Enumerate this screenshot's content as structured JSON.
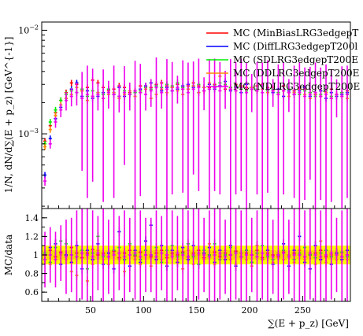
{
  "chart_data": {
    "type": "scatter",
    "subtype": "binned-histogram-with-ratio",
    "top_panel": {
      "ylabel": "1/N, dN/d∑(E + p_z) [GeV^{-1}]",
      "yscale": "log",
      "ylim": [
        0.00019,
        0.012
      ],
      "yticks": [
        {
          "label": "10^{-2}",
          "value": 0.01
        },
        {
          "label": "10^{-3}",
          "value": 0.001
        }
      ]
    },
    "ratio_panel": {
      "ylabel": "MC/data",
      "ylim": [
        0.5,
        1.5
      ],
      "yticks": [
        {
          "label": "0.6",
          "value": 0.6
        },
        {
          "label": "0.8",
          "value": 0.8
        },
        {
          "label": "1",
          "value": 1.0
        },
        {
          "label": "1.2",
          "value": 1.2
        },
        {
          "label": "1.4",
          "value": 1.4
        }
      ],
      "band_inner": [
        0.95,
        1.05
      ],
      "band_outer": [
        0.9,
        1.1
      ]
    },
    "xlabel": "∑(E + p_z) [GeV]",
    "xlim": [
      4,
      295
    ],
    "xticks": [
      {
        "label": "50",
        "value": 50
      },
      {
        "label": "100",
        "value": 100
      },
      {
        "label": "150",
        "value": 150
      },
      {
        "label": "200",
        "value": 200
      },
      {
        "label": "250",
        "value": 250
      }
    ],
    "legend": {
      "position": "top-right",
      "entries": [
        {
          "label": "MC (MinBiasLRG3edgepT",
          "color": "#ff0000"
        },
        {
          "label": "MC (DiffLRG3edgepT200l",
          "color": "#0000ff"
        },
        {
          "label": "MC (SDLRG3edgepT200E",
          "color": "#00ee00"
        },
        {
          "label": "MC (DDLRG3edgepT200E",
          "color": "#ff8800"
        },
        {
          "label": "MC (NDLRG3edgepT200E",
          "color": "#ee00ee"
        }
      ]
    },
    "bin_width": 5,
    "series": [
      {
        "name": "MC (MinBiasLRG3edgepT",
        "color": "#ff0000",
        "x": [
          7,
          12,
          17,
          22,
          27,
          32,
          37,
          42,
          47,
          52,
          57,
          62,
          67,
          72,
          77,
          82,
          87,
          92,
          97,
          102,
          107,
          112,
          117,
          122,
          127,
          132,
          137,
          142,
          147,
          152,
          157,
          162,
          167,
          172,
          177,
          182,
          187,
          192,
          197,
          202,
          207,
          212,
          217,
          222,
          227,
          232,
          237,
          242,
          247,
          252,
          257,
          262,
          267,
          272,
          277,
          282,
          287,
          292
        ],
        "y": [
          0.00085,
          0.0012,
          0.0016,
          0.0021,
          0.0025,
          0.0031,
          0.003,
          0.0026,
          0.0028,
          0.0033,
          0.0031,
          0.0028,
          0.0026,
          0.0027,
          0.0029,
          0.0028,
          0.0025,
          0.0026,
          0.0029,
          0.0027,
          0.0028,
          0.003,
          0.0031,
          0.0029,
          0.0028,
          0.003,
          0.0027,
          0.0029,
          0.0031,
          0.0029,
          0.0026,
          0.0028,
          0.003,
          0.0029,
          0.0027,
          0.0028,
          0.003,
          0.0029,
          0.0028,
          0.0027,
          0.0029,
          0.003,
          0.0028,
          0.0026,
          0.0027,
          0.0029,
          0.0025,
          0.0026,
          0.0028,
          0.0027,
          0.0025,
          0.0024,
          0.0026,
          0.0025,
          0.0027,
          0.0024,
          0.0025,
          0.0026
        ],
        "ratio": [
          1.0,
          1.05,
          0.98,
          1.03,
          1.0,
          1.08,
          1.02,
          0.97,
          1.02,
          1.06,
          1.0,
          1.02,
          0.98,
          1.04,
          0.97,
          1.02,
          1.05,
          0.99,
          1.03,
          1.0,
          0.98,
          1.02,
          1.05,
          0.97,
          1.02,
          1.0,
          1.03,
          0.98,
          1.02,
          1.05,
          0.97,
          1.0,
          1.03,
          0.98,
          1.02,
          1.0,
          1.04,
          0.98,
          1.02,
          1.0,
          1.05,
          0.97,
          1.02,
          1.0,
          0.98,
          1.03,
          1.0,
          1.02,
          1.05,
          0.98,
          1.0,
          1.02,
          1.05,
          0.98,
          1.0,
          1.02,
          0.98,
          1.0
        ]
      },
      {
        "name": "MC (DiffLRG3edgepT200l",
        "color": "#0000ff",
        "x": [
          7,
          12,
          17,
          22,
          27,
          32,
          37,
          42,
          47,
          52,
          57,
          62,
          67,
          72,
          77,
          82,
          87,
          92,
          97,
          102,
          107,
          112,
          117,
          122,
          127,
          132,
          137,
          142,
          147,
          152,
          157,
          162,
          167,
          172,
          177,
          182,
          187,
          192,
          197,
          202,
          207,
          212,
          217,
          222,
          227,
          232,
          237,
          242,
          247,
          252,
          257,
          262,
          267,
          272,
          277,
          282,
          287,
          292
        ],
        "y": [
          0.0004,
          0.0009,
          0.0014,
          0.0018,
          0.0022,
          0.0027,
          0.0031,
          0.0023,
          0.0026,
          0.0022,
          0.0023,
          0.0025,
          0.0027,
          0.0024,
          0.0028,
          0.0023,
          0.0024,
          0.0025,
          0.0027,
          0.0029,
          0.0031,
          0.0029,
          0.0026,
          0.0028,
          0.0026,
          0.0027,
          0.0029,
          0.003,
          0.0028,
          0.0025,
          0.0028,
          0.003,
          0.0027,
          0.0029,
          0.0032,
          0.0026,
          0.0028,
          0.0025,
          0.003,
          0.0028,
          0.0026,
          0.0029,
          0.0027,
          0.0025,
          0.0027,
          0.0023,
          0.0026,
          0.0024,
          0.0026,
          0.0028,
          0.0023,
          0.0024,
          0.0026,
          0.0022,
          0.0025,
          0.0023,
          0.0024,
          0.0025
        ],
        "ratio": [
          0.95,
          1.08,
          1.12,
          0.9,
          1.0,
          0.92,
          1.1,
          0.85,
          1.05,
          0.95,
          1.12,
          0.9,
          1.02,
          0.85,
          1.25,
          0.95,
          0.88,
          1.05,
          0.92,
          1.15,
          1.32,
          0.95,
          1.1,
          0.88,
          1.05,
          0.92,
          1.08,
          0.95,
          1.1,
          0.9,
          1.02,
          1.08,
          0.92,
          1.05,
          0.95,
          1.1,
          0.88,
          1.02,
          1.05,
          0.92,
          1.1,
          0.95,
          1.05,
          0.9,
          1.0,
          1.12,
          0.88,
          1.05,
          1.2,
          0.92,
          0.85,
          1.1,
          0.95,
          1.05,
          0.9,
          1.02,
          0.95,
          1.05
        ]
      },
      {
        "name": "MC (SDLRG3edgepT200E",
        "color": "#00ee00",
        "x": [
          7,
          12,
          17,
          22,
          27,
          32,
          37,
          42,
          47,
          52,
          57,
          62,
          67,
          72,
          77,
          82,
          87,
          92,
          97,
          102,
          107,
          112,
          117,
          122,
          127,
          132,
          137,
          142,
          147,
          152,
          157,
          162,
          167,
          172,
          177,
          182,
          187,
          192,
          197,
          202,
          207,
          212,
          217,
          222,
          227,
          232,
          237,
          242,
          247,
          252,
          257,
          262,
          267,
          272,
          277,
          282,
          287,
          292
        ],
        "y": [
          0.0008,
          0.0013,
          0.0017,
          0.0021,
          0.0024,
          0.0026,
          0.0025,
          0.0027,
          0.0023,
          0.0026,
          0.0025,
          0.0024,
          0.0027,
          0.0025,
          0.0023,
          0.0026,
          0.0024,
          0.0025,
          0.0026,
          0.0028,
          0.0027,
          0.0029,
          0.0028,
          0.003,
          0.0029,
          0.0031,
          0.0028,
          0.0027,
          0.0029,
          0.003,
          0.0028,
          0.0027,
          0.0029,
          0.0031,
          0.003,
          0.0028,
          0.0029,
          0.0027,
          0.0026,
          0.0028,
          0.0027,
          0.0029,
          0.0026,
          0.0027,
          0.0025,
          0.0026,
          0.0027,
          0.0025,
          0.0024,
          0.0026,
          0.0025,
          0.0023,
          0.0024,
          0.0026,
          0.0023,
          0.0024,
          0.0025,
          0.0024
        ],
        "ratio": [
          1.02,
          0.92,
          1.08,
          1.15,
          1.12,
          1.0,
          0.98,
          1.05,
          0.85,
          1.02,
          1.2,
          0.98,
          0.9,
          1.05,
          1.08,
          0.95,
          1.12,
          1.0,
          0.95,
          1.05,
          1.0,
          1.08,
          0.92,
          1.05,
          1.1,
          0.98,
          1.02,
          1.12,
          0.98,
          0.9,
          1.05,
          1.0,
          1.12,
          0.95,
          1.0,
          1.08,
          1.02,
          0.98,
          1.05,
          0.92,
          1.02,
          1.1,
          0.98,
          0.95,
          1.02,
          1.05,
          1.0,
          0.95,
          1.02,
          1.08,
          1.0,
          0.97,
          1.02,
          1.05,
          0.98,
          1.0,
          1.03,
          0.98
        ]
      },
      {
        "name": "MC (DDLRG3edgepT200E",
        "color": "#ff8800",
        "x": [
          7,
          12,
          17,
          22,
          27,
          32,
          37,
          42,
          47,
          52,
          57,
          62,
          67,
          72,
          77,
          82,
          87,
          92,
          97,
          102,
          107,
          112,
          117,
          122,
          127,
          132,
          137,
          142,
          147,
          152,
          157,
          162,
          167,
          172,
          177,
          182,
          187,
          192,
          197,
          202,
          207,
          212,
          217,
          222,
          227,
          232,
          237,
          242,
          247,
          252,
          257,
          262,
          267,
          272,
          277,
          282,
          287,
          292
        ],
        "y": [
          0.00075,
          0.0011,
          0.0015,
          0.0019,
          0.0022,
          0.0024,
          0.0028,
          0.0026,
          0.0021,
          0.0023,
          0.0025,
          0.0022,
          0.0024,
          0.0025,
          0.0022,
          0.0024,
          0.0026,
          0.0023,
          0.0025,
          0.0027,
          0.0022,
          0.0024,
          0.0027,
          0.0025,
          0.0028,
          0.0026,
          0.0024,
          0.0027,
          0.0029,
          0.0025,
          0.0028,
          0.0031,
          0.0028,
          0.0036,
          0.0029,
          0.0027,
          0.0026,
          0.0029,
          0.0027,
          0.0028,
          0.0026,
          0.0027,
          0.0025,
          0.0028,
          0.0024,
          0.0026,
          0.0023,
          0.0025,
          0.0027,
          0.0024,
          0.0022,
          0.0024,
          0.0023,
          0.0025,
          0.0022,
          0.0024,
          0.0023,
          0.0022
        ],
        "ratio": [
          0.95,
          0.9,
          0.95,
          1.0,
          0.95,
          0.82,
          0.78,
          1.02,
          0.72,
          0.9,
          1.05,
          0.95,
          0.9,
          1.02,
          0.95,
          0.82,
          1.1,
          0.95,
          0.9,
          1.0,
          0.88,
          1.05,
          0.95,
          0.92,
          1.0,
          0.95,
          0.85,
          1.05,
          0.9,
          1.0,
          0.95,
          1.12,
          0.9,
          1.0,
          1.05,
          0.95,
          0.9,
          1.02,
          0.95,
          0.88,
          1.1,
          0.95,
          1.0,
          0.92,
          1.02,
          0.95,
          1.0,
          0.92,
          1.05,
          0.95,
          1.02,
          0.9,
          1.15,
          0.92,
          1.0,
          0.95,
          1.02,
          0.95
        ]
      },
      {
        "name": "MC (NDLRG3edgepT200E",
        "color": "#ee00ee",
        "x": [
          7,
          12,
          17,
          22,
          27,
          32,
          37,
          42,
          47,
          52,
          57,
          62,
          67,
          72,
          77,
          82,
          87,
          92,
          97,
          102,
          107,
          112,
          117,
          122,
          127,
          132,
          137,
          142,
          147,
          152,
          157,
          162,
          167,
          172,
          177,
          182,
          187,
          192,
          197,
          202,
          207,
          212,
          217,
          222,
          227,
          232,
          237,
          242,
          247,
          252,
          257,
          262,
          267,
          272,
          277,
          282,
          287,
          292
        ],
        "y": [
          0.00035,
          0.0008,
          0.0013,
          0.0017,
          0.0021,
          0.0023,
          0.0025,
          0.0022,
          0.0024,
          0.0023,
          0.0024,
          0.0022,
          0.0025,
          0.0024,
          0.0023,
          0.0025,
          0.0024,
          0.0026,
          0.0025,
          0.0024,
          0.0026,
          0.0028,
          0.0025,
          0.0027,
          0.0026,
          0.0028,
          0.0027,
          0.0025,
          0.0027,
          0.0028,
          0.0026,
          0.0027,
          0.0028,
          0.0026,
          0.0029,
          0.0027,
          0.0026,
          0.0028,
          0.0025,
          0.0027,
          0.0026,
          0.0025,
          0.0027,
          0.0026,
          0.0024,
          0.0026,
          0.0025,
          0.0024,
          0.0025,
          0.0023,
          0.0024,
          0.0025,
          0.0023,
          0.0024,
          0.0022,
          0.0024,
          0.0023,
          0.0024
        ],
        "y_err_rel": [
          0.1,
          0.1,
          0.12,
          0.15,
          0.2,
          0.2,
          0.25,
          0.8,
          0.9,
          0.85,
          0.3,
          0.9,
          0.3,
          0.9,
          0.3,
          0.8,
          0.3,
          0.95,
          0.9,
          0.3,
          0.3,
          0.95,
          0.3,
          0.95,
          0.9,
          0.3,
          0.9,
          0.95,
          0.85,
          0.9,
          0.35,
          0.95,
          0.9,
          0.9,
          0.4,
          0.95,
          0.9,
          0.9,
          0.95,
          0.4,
          0.9,
          0.95,
          0.9,
          0.3,
          0.95,
          0.9,
          0.35,
          0.9,
          0.95,
          0.9,
          0.85,
          0.95,
          0.9,
          0.95,
          0.9,
          0.4,
          0.95,
          0.9
        ],
        "ratio": [
          0.95,
          1.0,
          0.95,
          1.02,
          0.98,
          1.0,
          0.98,
          1.02,
          1.0,
          0.98,
          1.02,
          1.0,
          0.98,
          1.0,
          1.02,
          0.98,
          1.0,
          1.02,
          0.98,
          1.0,
          1.0,
          0.98,
          1.02,
          1.0,
          0.98,
          1.02,
          1.0,
          0.98,
          1.0,
          1.02,
          1.0,
          0.98,
          1.0,
          1.02,
          0.98,
          1.0,
          1.02,
          0.98,
          1.0,
          1.0,
          0.98,
          1.02,
          1.0,
          0.98,
          1.0,
          1.02,
          0.98,
          1.0,
          1.0,
          0.98,
          1.02,
          1.0,
          0.98,
          1.0,
          1.02,
          1.0,
          0.98,
          1.0
        ],
        "ratio_err": [
          0.3,
          0.3,
          0.3,
          0.3,
          0.4,
          0.4,
          0.5,
          0.5,
          0.5,
          0.5,
          0.4,
          0.5,
          0.4,
          0.5,
          0.4,
          0.5,
          0.4,
          0.5,
          0.5,
          0.4,
          0.4,
          0.5,
          0.4,
          0.5,
          0.5,
          0.4,
          0.5,
          0.5,
          0.5,
          0.5,
          0.4,
          0.5,
          0.5,
          0.5,
          0.4,
          0.5,
          0.5,
          0.5,
          0.5,
          0.4,
          0.5,
          0.5,
          0.5,
          0.4,
          0.5,
          0.5,
          0.4,
          0.5,
          0.5,
          0.5,
          0.5,
          0.5,
          0.5,
          0.5,
          0.5,
          0.4,
          0.5,
          0.5
        ]
      }
    ]
  }
}
